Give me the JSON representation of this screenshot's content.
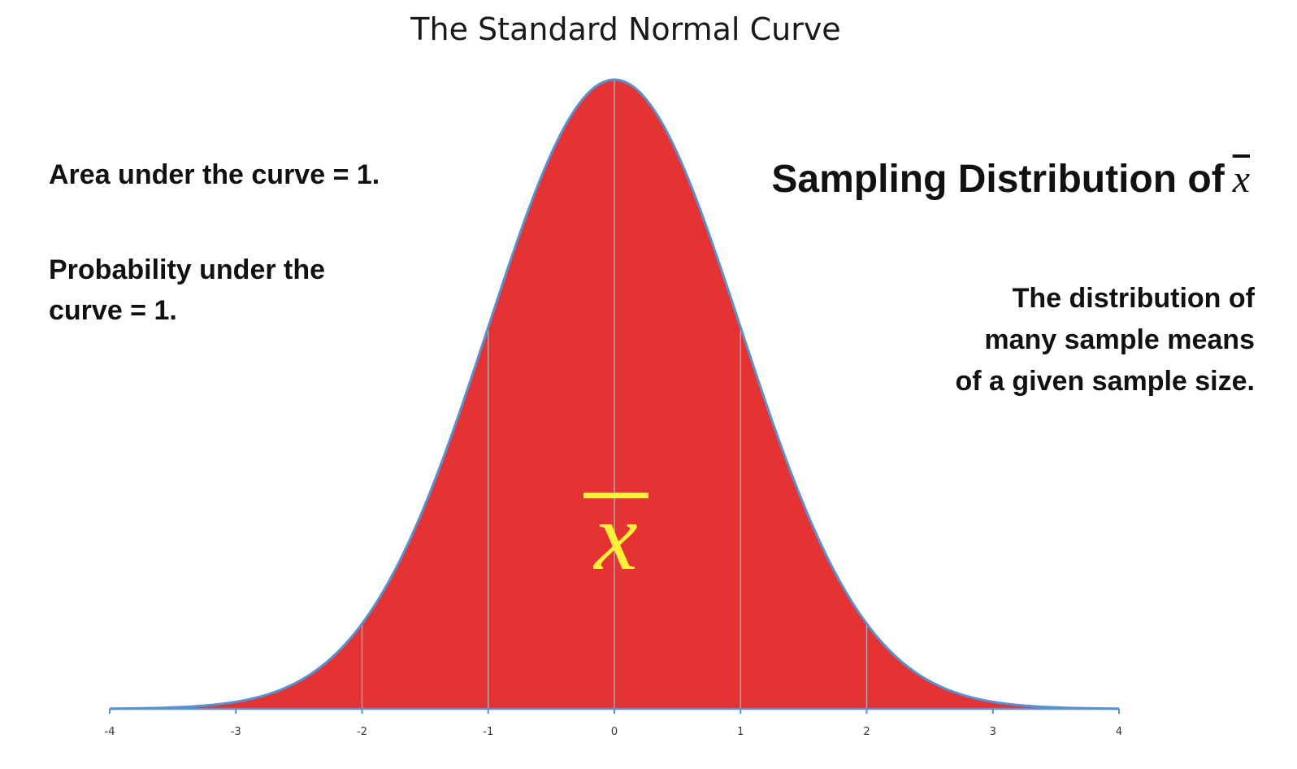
{
  "chart_data": {
    "type": "area",
    "title": "The Standard Normal Curve",
    "x_ticks": [
      "-4",
      "-3",
      "-2",
      "-1",
      "0",
      "1",
      "2",
      "3",
      "4"
    ],
    "xlim": [
      -4,
      4
    ],
    "distribution": "standard normal",
    "mean": 0,
    "sd": 1,
    "vertical_lines_at": [
      -2,
      -1,
      0,
      1,
      2
    ],
    "fill_color": "#e53232",
    "line_color": "#5a8fd0",
    "grid": false,
    "center_symbol": "x̄",
    "center_symbol_color": "#fff03a"
  },
  "annotations": {
    "area_note": "Area under the curve = 1.",
    "probability_note_line1": "Probability under the",
    "probability_note_line2": "curve = 1.",
    "sampling_heading": "Sampling Distribution of",
    "sampling_heading_symbol": "x",
    "description_line1": "The distribution of",
    "description_line2": "many sample means",
    "description_line3": "of a given sample size."
  }
}
